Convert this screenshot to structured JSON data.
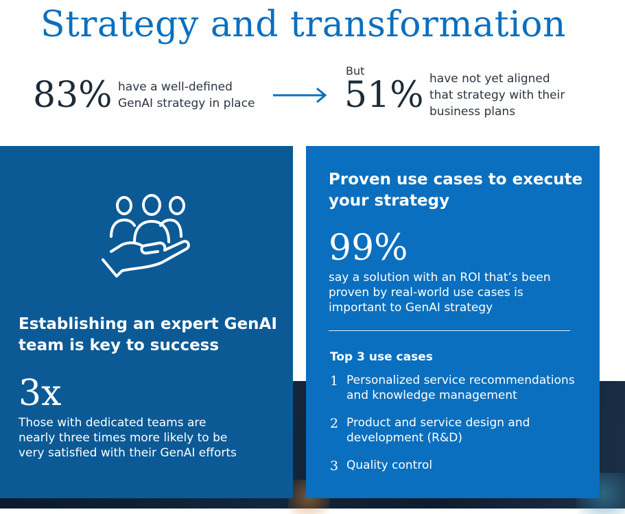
{
  "title": "Strategy and transformation",
  "stats_row": {
    "left": {
      "value": "83%",
      "text_line1": "have a well-defined",
      "text_line2": "GenAI strategy in place"
    },
    "right": {
      "prefix": "But",
      "value": "51%",
      "text_line1": "have not yet aligned",
      "text_line2": "that strategy with their",
      "text_line3": "business plans"
    },
    "arrow_icon": "arrow-right-icon"
  },
  "left_card": {
    "icon": "team-hand-icon",
    "heading_line1": "Establishing an expert GenAI",
    "heading_line2": "team is key to success",
    "stat": "3x",
    "text_line1": "Those with dedicated teams are",
    "text_line2": "nearly three times more likely to be",
    "text_line3": "very satisfied with their GenAI efforts"
  },
  "right_card": {
    "heading_line1": "Proven use cases to execute",
    "heading_line2": "your strategy",
    "stat": "99%",
    "text_line1": "say a solution with an ROI that’s been",
    "text_line2": "proven by real-world use cases is",
    "text_line3": "important to GenAI strategy",
    "use_cases_heading": "Top 3 use cases",
    "use_cases": [
      {
        "num": "1",
        "line1": "Personalized service recommendations",
        "line2": "and knowledge management"
      },
      {
        "num": "2",
        "line1": "Product and service design and",
        "line2": "development (R&D)"
      },
      {
        "num": "3",
        "line1": "Quality control",
        "line2": ""
      }
    ]
  },
  "colors": {
    "title_blue": "#0a6fbf",
    "left_card": "#0b5a96",
    "right_card": "#0a6fbf",
    "arrow": "#0a6fbf"
  }
}
